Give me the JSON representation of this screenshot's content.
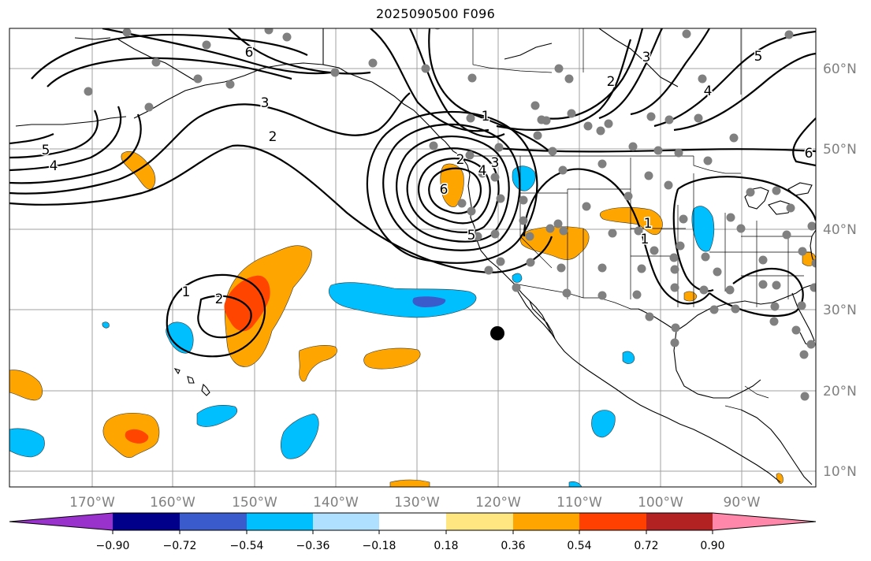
{
  "title": "2025090500 F096",
  "longitude_labels": [
    "170°W",
    "160°W",
    "150°W",
    "140°W",
    "130°W",
    "120°W",
    "110°W",
    "100°W",
    "90°W"
  ],
  "latitude_labels": [
    "60°N",
    "50°N",
    "40°N",
    "30°N",
    "20°N",
    "10°N"
  ],
  "colorbar": {
    "tick_labels": [
      "−0.90",
      "−0.72",
      "−0.54",
      "−0.36",
      "−0.18",
      "0.18",
      "0.36",
      "0.54",
      "0.72",
      "0.90"
    ],
    "colors": [
      "#9932cc",
      "#00008b",
      "#3a5bcc",
      "#00bfff",
      "#b0e0ff",
      "#ffffff",
      "#ffe680",
      "#ffa500",
      "#ff4000",
      "#b22222",
      "#ff88aa"
    ]
  },
  "contour_labels": [
    "5",
    "4",
    "6",
    "3",
    "2",
    "1",
    "6",
    "5",
    "4",
    "3",
    "2",
    "1",
    "1",
    "2",
    "1",
    "2",
    "3",
    "4",
    "5",
    "6"
  ],
  "colors": {
    "orange": "#ffa500",
    "red_orange": "#ff4500",
    "light_blue": "#00bfff",
    "medium_blue": "#3a5bcc",
    "station": "#808080"
  }
}
